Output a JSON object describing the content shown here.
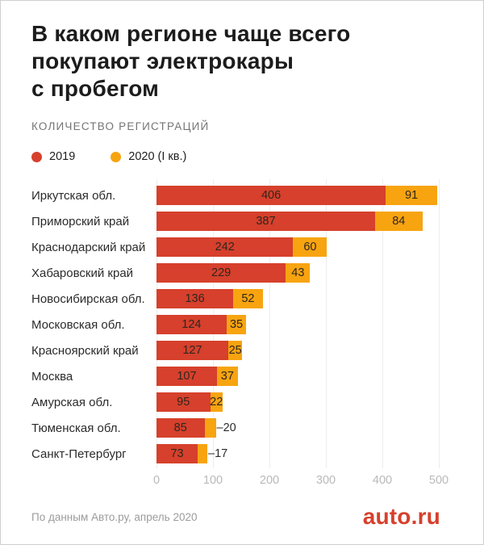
{
  "header": {
    "title_lines": [
      "В каком регионе чаще всего",
      "покупают электрокары",
      "с пробегом"
    ],
    "subtitle": "КОЛИЧЕСТВО РЕГИСТРАЦИЙ"
  },
  "legend": [
    {
      "label": "2019",
      "color": "#d6402c"
    },
    {
      "label": "2020 (I кв.)",
      "color": "#f7a410"
    }
  ],
  "chart_data": {
    "type": "bar",
    "orientation": "horizontal",
    "stacked": true,
    "title": "В каком регионе чаще всего покупают электрокары с пробегом",
    "subtitle": "КОЛИЧЕСТВО РЕГИСТРАЦИЙ",
    "categories": [
      "Иркутская обл.",
      "Приморский край",
      "Краснодарский край",
      "Хабаровский край",
      "Новосибирская обл.",
      "Московская обл.",
      "Красноярский край",
      "Москва",
      "Амурская обл.",
      "Тюменская обл.",
      "Санкт-Петербург"
    ],
    "series": [
      {
        "name": "2019",
        "color": "#d6402c",
        "values": [
          406,
          387,
          242,
          229,
          136,
          124,
          127,
          107,
          95,
          85,
          73
        ]
      },
      {
        "name": "2020 (I кв.)",
        "color": "#f7a410",
        "values": [
          91,
          84,
          60,
          43,
          52,
          35,
          25,
          37,
          22,
          20,
          17
        ]
      }
    ],
    "xlim": [
      0,
      500
    ],
    "xticks": [
      0,
      100,
      200,
      300,
      400,
      500
    ],
    "grid": true,
    "legend_position": "top",
    "value_labels": true,
    "value_label_outside_below": 21,
    "outside_label_dash": "–"
  },
  "footer": {
    "source": "По данным Авто.ру, апрель 2020",
    "logo": "auto.ru",
    "logo_color": "#d6402c"
  }
}
